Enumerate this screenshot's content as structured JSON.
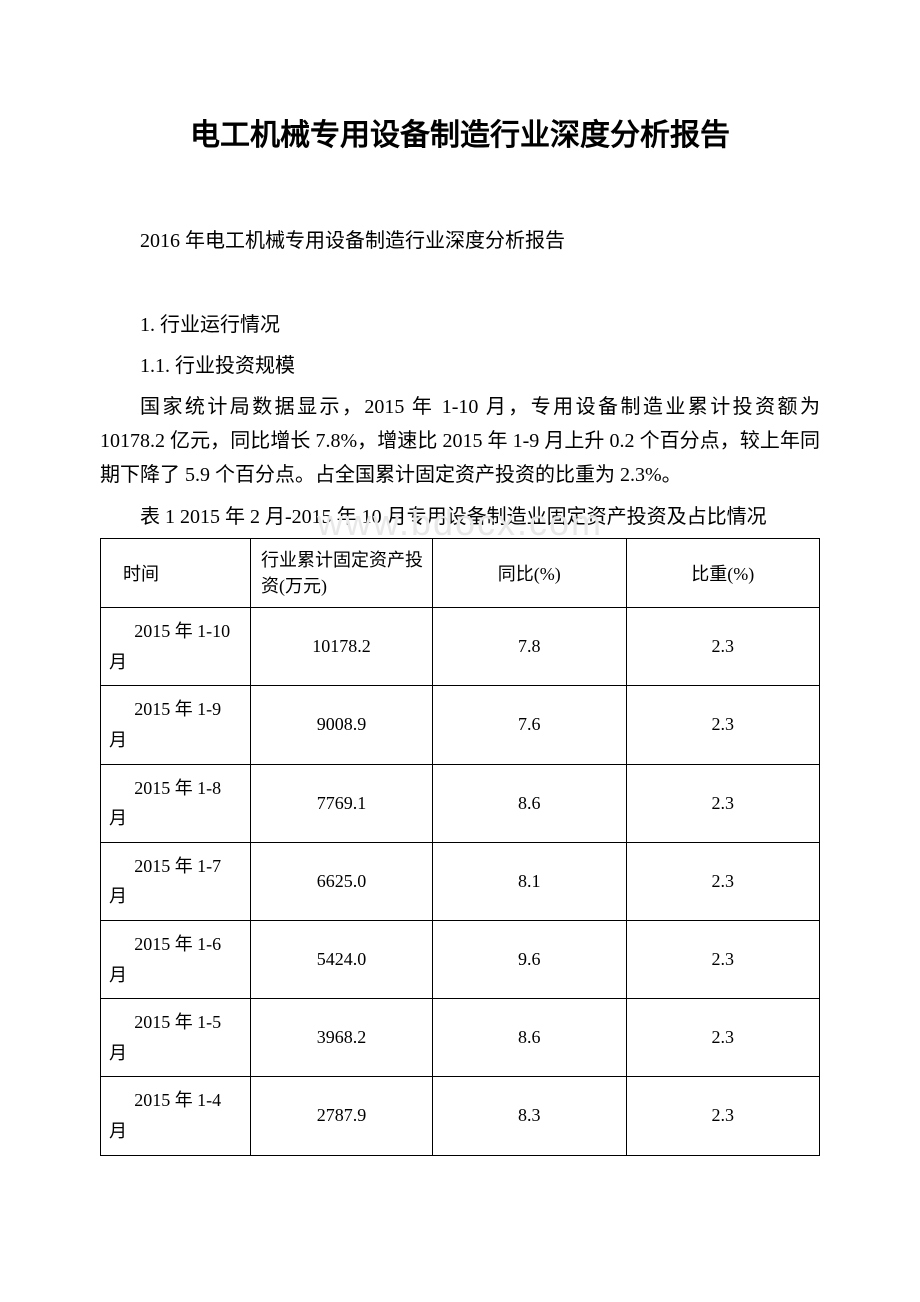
{
  "title": "电工机械专用设备制造行业深度分析报告",
  "subtitle": "2016 年电工机械专用设备制造行业深度分析报告",
  "section1": "1. 行业运行情况",
  "section1_1": "1.1. 行业投资规模",
  "paragraph": "国家统计局数据显示，2015 年 1-10 月，专用设备制造业累计投资额为 10178.2 亿元，同比增长 7.8%，增速比 2015 年 1-9 月上升 0.2 个百分点，较上年同期下降了 5.9 个百分点。占全国累计固定资产投资的比重为 2.3%。",
  "table_caption": "表 1 2015 年 2 月-2015 年 10 月专用设备制造业固定资产投资及占比情况",
  "watermark": "www.bdocx.com",
  "table": {
    "columns": [
      "时间",
      "行业累计固定资产投资(万元)",
      "同比(%)",
      "比重(%)"
    ],
    "col_widths_pct": [
      21,
      25,
      27,
      27
    ],
    "rows": [
      {
        "time_l1": "2015 年 1-10",
        "time_l2": "月",
        "inv": "10178.2",
        "yoy": "7.8",
        "wt": "2.3"
      },
      {
        "time_l1": "2015 年 1-9",
        "time_l2": "月",
        "inv": "9008.9",
        "yoy": "7.6",
        "wt": "2.3"
      },
      {
        "time_l1": "2015 年 1-8",
        "time_l2": "月",
        "inv": "7769.1",
        "yoy": "8.6",
        "wt": "2.3"
      },
      {
        "time_l1": "2015 年 1-7",
        "time_l2": "月",
        "inv": "6625.0",
        "yoy": "8.1",
        "wt": "2.3"
      },
      {
        "time_l1": "2015 年 1-6",
        "time_l2": "月",
        "inv": "5424.0",
        "yoy": "9.6",
        "wt": "2.3"
      },
      {
        "time_l1": "2015 年 1-5",
        "time_l2": "月",
        "inv": "3968.2",
        "yoy": "8.6",
        "wt": "2.3"
      },
      {
        "time_l1": "2015 年 1-4",
        "time_l2": "月",
        "inv": "2787.9",
        "yoy": "8.3",
        "wt": "2.3"
      }
    ],
    "border_color": "#000000",
    "font_size_pt": 14,
    "background_color": "#ffffff"
  }
}
